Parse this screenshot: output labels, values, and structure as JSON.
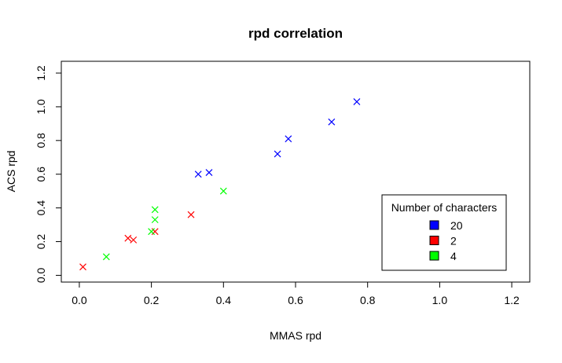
{
  "chart_data": {
    "type": "scatter",
    "title": "rpd correlation",
    "xlabel": "MMAS rpd",
    "ylabel": "ACS rpd",
    "xlim": [
      -0.05,
      1.25
    ],
    "ylim": [
      -0.04,
      1.27
    ],
    "x_ticks": [
      "0.0",
      "0.2",
      "0.4",
      "0.6",
      "0.8",
      "1.0",
      "1.2"
    ],
    "y_ticks": [
      "0.0",
      "0.2",
      "0.4",
      "0.6",
      "0.8",
      "1.0",
      "1.2"
    ],
    "grid": false,
    "legend": {
      "title": "Number of characters",
      "position": "bottom-right"
    },
    "series": [
      {
        "name": "20",
        "color": "#0000ff",
        "marker": "x",
        "points": [
          {
            "x": 0.33,
            "y": 0.6
          },
          {
            "x": 0.36,
            "y": 0.61
          },
          {
            "x": 0.55,
            "y": 0.72
          },
          {
            "x": 0.58,
            "y": 0.81
          },
          {
            "x": 0.7,
            "y": 0.91
          },
          {
            "x": 0.77,
            "y": 1.03
          }
        ]
      },
      {
        "name": "2",
        "color": "#ff0000",
        "marker": "x",
        "points": [
          {
            "x": 0.01,
            "y": 0.05
          },
          {
            "x": 0.135,
            "y": 0.22
          },
          {
            "x": 0.15,
            "y": 0.21
          },
          {
            "x": 0.21,
            "y": 0.26
          },
          {
            "x": 0.31,
            "y": 0.36
          }
        ]
      },
      {
        "name": "4",
        "color": "#00ff00",
        "marker": "x",
        "points": [
          {
            "x": 0.075,
            "y": 0.11
          },
          {
            "x": 0.2,
            "y": 0.26
          },
          {
            "x": 0.21,
            "y": 0.33
          },
          {
            "x": 0.21,
            "y": 0.39
          },
          {
            "x": 0.4,
            "y": 0.5
          }
        ]
      }
    ]
  }
}
